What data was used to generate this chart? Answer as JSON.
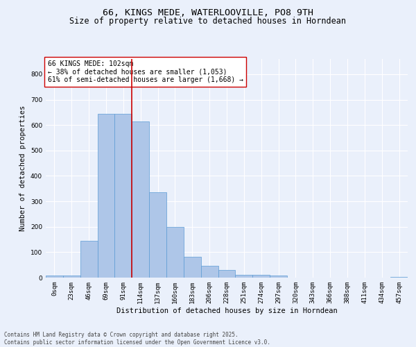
{
  "title_line1": "66, KINGS MEDE, WATERLOOVILLE, PO8 9TH",
  "title_line2": "Size of property relative to detached houses in Horndean",
  "xlabel": "Distribution of detached houses by size in Horndean",
  "ylabel": "Number of detached properties",
  "bin_labels": [
    "0sqm",
    "23sqm",
    "46sqm",
    "69sqm",
    "91sqm",
    "114sqm",
    "137sqm",
    "160sqm",
    "183sqm",
    "206sqm",
    "228sqm",
    "251sqm",
    "274sqm",
    "297sqm",
    "320sqm",
    "343sqm",
    "366sqm",
    "388sqm",
    "411sqm",
    "434sqm",
    "457sqm"
  ],
  "bar_values": [
    7,
    8,
    145,
    645,
    645,
    615,
    335,
    200,
    83,
    46,
    30,
    12,
    11,
    7,
    0,
    0,
    0,
    0,
    0,
    0,
    3
  ],
  "bar_color": "#aec6e8",
  "bar_edge_color": "#5b9bd5",
  "vline_x": 4.5,
  "vline_color": "#cc0000",
  "annotation_text": "66 KINGS MEDE: 102sqm\n← 38% of detached houses are smaller (1,053)\n61% of semi-detached houses are larger (1,668) →",
  "annotation_box_color": "#ffffff",
  "annotation_box_edge_color": "#cc0000",
  "ylim": [
    0,
    860
  ],
  "yticks": [
    0,
    100,
    200,
    300,
    400,
    500,
    600,
    700,
    800
  ],
  "background_color": "#eaf0fb",
  "plot_bg_color": "#eaf0fb",
  "footer_text": "Contains HM Land Registry data © Crown copyright and database right 2025.\nContains public sector information licensed under the Open Government Licence v3.0.",
  "title_fontsize": 9.5,
  "subtitle_fontsize": 8.5,
  "axis_label_fontsize": 7.5,
  "tick_fontsize": 6.5,
  "annotation_fontsize": 7,
  "footer_fontsize": 5.5
}
